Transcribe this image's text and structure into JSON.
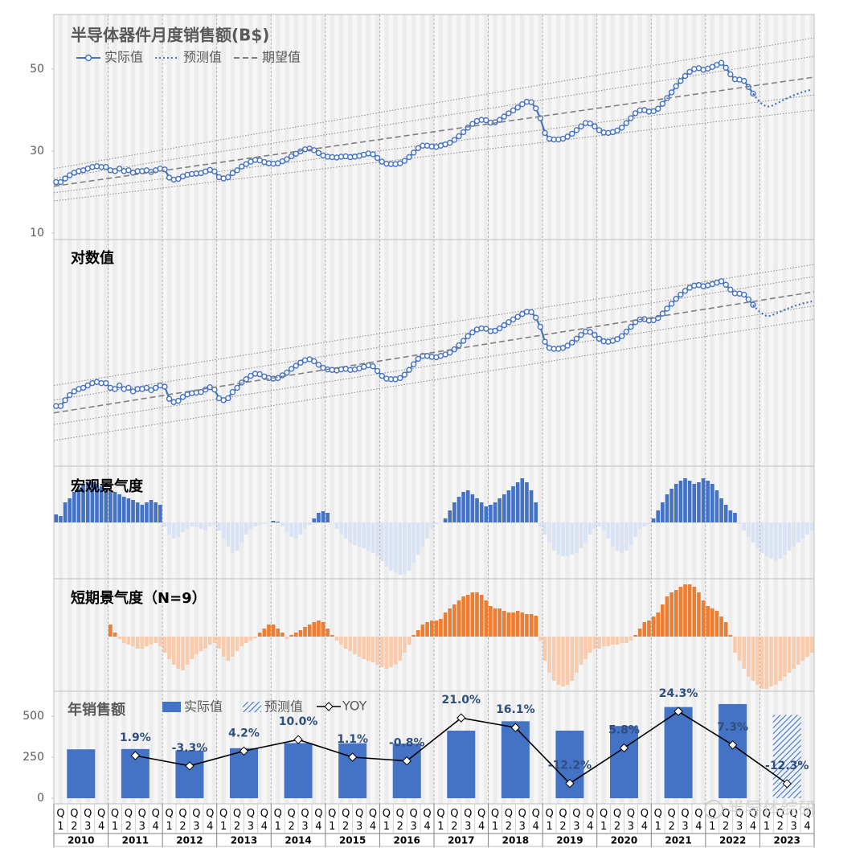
{
  "chart_data": [
    {
      "type": "line",
      "title": "半导体器件月度销售额(B$)",
      "xlim": [
        2010,
        2024
      ],
      "ylim": [
        8.4,
        63.3
      ],
      "yticks": [
        10,
        30,
        50
      ],
      "series": [
        {
          "name": "实际值",
          "color": "#4472c4",
          "line_style": "solid",
          "marker": "circle",
          "values": [
            22.4,
            22.4,
            23.3,
            24.1,
            24.7,
            25.1,
            25.3,
            25.7,
            26.1,
            26.3,
            26.1,
            26.1,
            25.3,
            25.1,
            25.7,
            25.1,
            25.3,
            24.7,
            25.1,
            25.1,
            25.3,
            24.9,
            25.3,
            25.7,
            25.5,
            23.5,
            23.0,
            23.2,
            23.8,
            24.2,
            24.4,
            24.5,
            24.6,
            25.0,
            25.4,
            25.0,
            23.6,
            23.3,
            23.6,
            24.6,
            25.3,
            26.2,
            26.8,
            27.4,
            27.8,
            27.7,
            27.3,
            27.0,
            26.9,
            27.0,
            27.5,
            28.0,
            28.7,
            29.3,
            29.9,
            30.4,
            30.6,
            30.2,
            29.5,
            28.9,
            28.6,
            28.5,
            28.4,
            28.6,
            28.7,
            28.5,
            28.6,
            28.8,
            29.1,
            29.4,
            29.2,
            28.3,
            27.4,
            26.9,
            26.8,
            26.8,
            27.0,
            27.6,
            28.5,
            29.6,
            30.7,
            31.3,
            31.3,
            31.1,
            31.0,
            31.3,
            31.6,
            32.0,
            32.7,
            33.6,
            34.6,
            35.7,
            36.6,
            37.3,
            37.6,
            37.5,
            36.9,
            37.0,
            37.6,
            38.4,
            39.2,
            39.9,
            40.6,
            41.4,
            42.0,
            41.9,
            40.4,
            38.0,
            34.4,
            33.0,
            32.8,
            32.8,
            33.0,
            33.5,
            34.2,
            35.1,
            36.0,
            36.8,
            36.7,
            36.0,
            35.1,
            34.5,
            34.4,
            34.6,
            35.0,
            35.7,
            36.8,
            38.0,
            39.2,
            39.9,
            40.0,
            39.6,
            39.7,
            40.3,
            41.5,
            42.9,
            44.3,
            45.8,
            47.1,
            48.3,
            49.3,
            50.0,
            50.2,
            49.8,
            50.1,
            50.5,
            51.0,
            51.5,
            50.3,
            48.7,
            47.5,
            47.4,
            47.1,
            45.6,
            44.0,
            null,
            null,
            null,
            null,
            null,
            null,
            null,
            null,
            null,
            null,
            null,
            null,
            null
          ]
        },
        {
          "name": "预测值",
          "color": "#4472c4",
          "line_style": "dotted",
          "values": [
            null,
            null,
            null,
            null,
            null,
            null,
            null,
            null,
            null,
            null,
            null,
            null,
            null,
            null,
            null,
            null,
            null,
            null,
            null,
            null,
            null,
            null,
            null,
            null,
            null,
            null,
            null,
            null,
            null,
            null,
            null,
            null,
            null,
            null,
            null,
            null,
            null,
            null,
            null,
            null,
            null,
            null,
            null,
            null,
            null,
            null,
            null,
            null,
            null,
            null,
            null,
            null,
            null,
            null,
            null,
            null,
            null,
            null,
            null,
            null,
            null,
            null,
            null,
            null,
            null,
            null,
            null,
            null,
            null,
            null,
            null,
            null,
            null,
            null,
            null,
            null,
            null,
            null,
            null,
            null,
            null,
            null,
            null,
            null,
            null,
            null,
            null,
            null,
            null,
            null,
            null,
            null,
            null,
            null,
            null,
            null,
            null,
            null,
            null,
            null,
            null,
            null,
            null,
            null,
            null,
            null,
            null,
            null,
            null,
            null,
            null,
            null,
            null,
            null,
            null,
            null,
            null,
            null,
            null,
            null,
            null,
            null,
            null,
            null,
            null,
            null,
            null,
            null,
            null,
            null,
            null,
            null,
            null,
            null,
            null,
            null,
            null,
            null,
            null,
            null,
            null,
            null,
            null,
            null,
            null,
            null,
            null,
            null,
            null,
            null,
            null,
            null,
            null,
            null,
            44.0,
            42.5,
            41.5,
            40.8,
            40.9,
            41.5,
            42.0,
            42.6,
            43.1,
            43.6,
            44.0,
            44.4,
            44.7,
            45.0
          ]
        },
        {
          "name": "期望值",
          "color": "#7f7f7f",
          "line_style": "dashed",
          "x": [
            2010,
            2024
          ],
          "values": [
            21.4,
            48.0
          ]
        }
      ],
      "bands": [
        {
          "color": "#8c8c8c",
          "x": [
            2010,
            2024
          ],
          "values": [
            25.7,
            57.6
          ]
        },
        {
          "color": "#8c8c8c",
          "x": [
            2010,
            2024
          ],
          "values": [
            23.3,
            53.1
          ]
        },
        {
          "color": "#8c8c8c",
          "x": [
            2010,
            2024
          ],
          "values": [
            19.8,
            43.7
          ]
        },
        {
          "color": "#8c8c8c",
          "x": [
            2010,
            2024
          ],
          "values": [
            17.8,
            40.0
          ]
        }
      ]
    },
    {
      "type": "line",
      "title": "对数值",
      "log_scale": true,
      "ylim": [
        15,
        68
      ]
    },
    {
      "type": "bar",
      "title": "宏观景气度",
      "ylim": [
        -70,
        70
      ],
      "series": [
        {
          "color": "#4472c4",
          "negative_color": "#dae3f3",
          "values": [
            10,
            8,
            25,
            30,
            38,
            42,
            48,
            50,
            50,
            48,
            45,
            42,
            40,
            38,
            35,
            32,
            30,
            28,
            25,
            22,
            25,
            28,
            25,
            22,
            -5,
            -15,
            -20,
            -18,
            -12,
            -8,
            -5,
            -5,
            -8,
            -10,
            -5,
            -3,
            -10,
            -20,
            -30,
            -38,
            -35,
            -25,
            -15,
            -8,
            -5,
            -3,
            -2,
            0,
            2,
            1,
            -5,
            -12,
            -18,
            -20,
            -15,
            -8,
            -3,
            5,
            12,
            14,
            12,
            0,
            -8,
            -15,
            -20,
            -25,
            -28,
            -30,
            -32,
            -35,
            -38,
            -42,
            -48,
            -55,
            -60,
            -62,
            -65,
            -64,
            -60,
            -50,
            -40,
            -30,
            -20,
            -8,
            -2,
            0,
            5,
            15,
            25,
            32,
            38,
            40,
            35,
            30,
            25,
            20,
            22,
            25,
            30,
            35,
            40,
            45,
            50,
            55,
            50,
            40,
            25,
            -5,
            -15,
            -25,
            -35,
            -40,
            -42,
            -42,
            -40,
            -38,
            -32,
            -25,
            -15,
            -8,
            -5,
            -10,
            -20,
            -30,
            -35,
            -38,
            -35,
            -28,
            -18,
            -8,
            -5,
            -3,
            5,
            15,
            25,
            35,
            42,
            48,
            52,
            55,
            52,
            48,
            50,
            55,
            52,
            48,
            40,
            30,
            22,
            15,
            12,
            -2,
            -10,
            -18,
            -25,
            -32,
            -38,
            -42,
            -45,
            -48,
            -45,
            -40,
            -35,
            -30,
            -25,
            -20,
            -15,
            -10
          ]
        }
      ]
    },
    {
      "type": "bar",
      "title": "短期景气度（N=9）",
      "ylim": [
        -68,
        72
      ],
      "series": [
        {
          "color": "#ed7d31",
          "negative_color": "#f8cbad",
          "values": [
            null,
            null,
            null,
            null,
            null,
            null,
            null,
            null,
            null,
            null,
            null,
            null,
            15,
            5,
            -3,
            -8,
            -10,
            -12,
            -15,
            -15,
            -12,
            -10,
            -8,
            -12,
            -20,
            -28,
            -35,
            -40,
            -42,
            -35,
            -28,
            -22,
            -18,
            -15,
            -10,
            -8,
            -15,
            -25,
            -30,
            -25,
            -18,
            -12,
            -8,
            -5,
            -2,
            5,
            10,
            15,
            15,
            10,
            5,
            -3,
            2,
            5,
            8,
            12,
            15,
            18,
            20,
            18,
            10,
            2,
            -5,
            -10,
            -15,
            -18,
            -22,
            -25,
            -28,
            -30,
            -32,
            -35,
            -38,
            -40,
            -38,
            -35,
            -30,
            -20,
            -10,
            2,
            8,
            15,
            18,
            20,
            20,
            22,
            30,
            35,
            40,
            45,
            50,
            52,
            55,
            55,
            52,
            45,
            38,
            35,
            35,
            32,
            30,
            30,
            32,
            30,
            28,
            28,
            26,
            -5,
            -30,
            -45,
            -55,
            -60,
            -62,
            -60,
            -55,
            -45,
            -35,
            -28,
            -20,
            -15,
            -15,
            -12,
            -12,
            -10,
            -10,
            -8,
            -8,
            -5,
            2,
            10,
            18,
            20,
            25,
            30,
            40,
            50,
            55,
            58,
            62,
            65,
            65,
            62,
            55,
            45,
            38,
            35,
            32,
            25,
            18,
            2,
            -20,
            -30,
            -40,
            -50,
            -55,
            -60,
            -65,
            -65,
            -62,
            -60,
            -55,
            -50,
            -45,
            -40,
            -35,
            -30,
            -25,
            -20
          ]
        }
      ]
    },
    {
      "type": "bar",
      "title": "年销售额",
      "categories": [
        "2010",
        "2011",
        "2012",
        "2013",
        "2014",
        "2015",
        "2016",
        "2017",
        "2018",
        "2019",
        "2020",
        "2021",
        "2022",
        "2023"
      ],
      "quarters": [
        "Q1",
        "Q2",
        "Q3",
        "Q4"
      ],
      "ylim": [
        -34,
        652
      ],
      "yticks": [
        0,
        250,
        500
      ],
      "y2lim": [
        -22.5,
        34.5
      ],
      "series": [
        {
          "name": "实际值",
          "color": "#4472c4",
          "values": [
            298,
            300,
            291,
            305,
            336,
            335,
            333,
            412,
            469,
            412,
            440,
            556,
            574,
            null
          ]
        },
        {
          "name": "预测值",
          "color": "#4472c4",
          "pattern": "hatch",
          "values": [
            null,
            null,
            null,
            null,
            null,
            null,
            null,
            null,
            null,
            null,
            null,
            null,
            null,
            508
          ]
        },
        {
          "name": "YOY",
          "color": "#000000",
          "axis": "y2",
          "marker": "diamond",
          "values": [
            null,
            1.9,
            -3.3,
            4.2,
            10.0,
            1.1,
            -0.8,
            21.0,
            16.1,
            -12.2,
            5.8,
            24.3,
            7.3,
            -12.3
          ],
          "value_labels": [
            null,
            "1.9%",
            "-3.3%",
            "4.2%",
            "10.0%",
            "1.1%",
            "-0.8%",
            "21.0%",
            "16.1%",
            "-12.2%",
            "5.8%",
            "24.3%",
            "7.3%",
            "-12.3%"
          ]
        }
      ]
    }
  ],
  "watermark": "半导体综研"
}
